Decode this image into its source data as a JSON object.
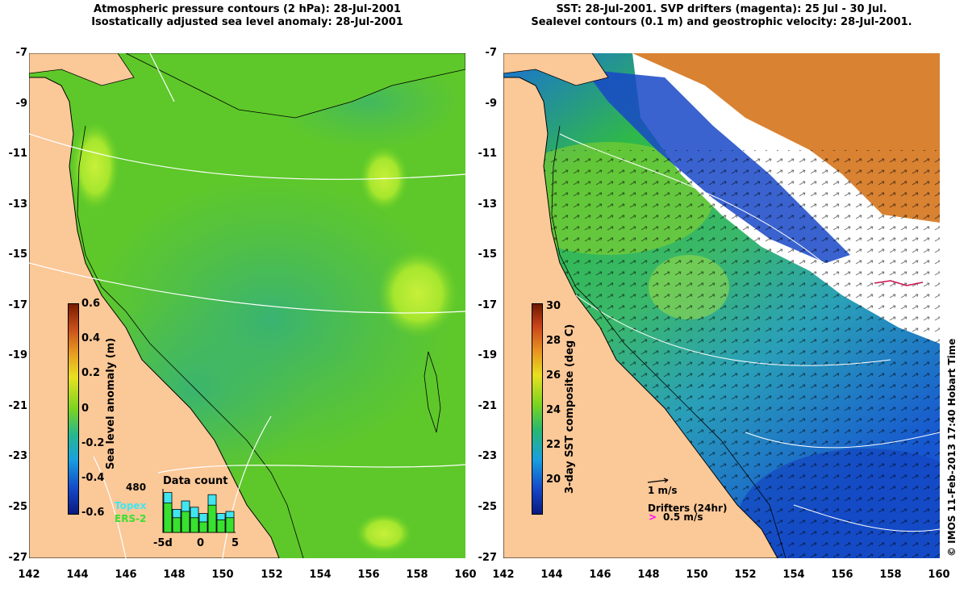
{
  "left_panel": {
    "title_line1": "Atmospheric pressure contours (2 hPa): 28-Jul-2001",
    "title_line2": "Isostatically adjusted sea level anomaly: 28-Jul-2001",
    "colorbar_title": "Sea level anomaly (m)",
    "colorbar_ticks": [
      "0.6",
      "0.4",
      "0.2",
      "0",
      "-0.2",
      "-0.4",
      "-0.6"
    ],
    "inset_title": "Data count",
    "inset_max": "480",
    "inset_xticks": [
      "-5d",
      "0",
      "5"
    ],
    "legend_topex": "Topex",
    "legend_ers2": "ERS-2",
    "inset_counts_topex": [
      0.95,
      0.55,
      0.75,
      0.6,
      0.45,
      0.9,
      0.45,
      0.5
    ],
    "inset_counts_ers2": [
      0.7,
      0.35,
      0.5,
      0.35,
      0.25,
      0.65,
      0.3,
      0.35
    ]
  },
  "right_panel": {
    "title_line1": "SST: 28-Jul-2001. SVP drifters (magenta): 25 Jul - 30 Jul.",
    "title_line2": "Sealevel contours (0.1 m) and geostrophic velocity: 28-Jul-2001.",
    "colorbar_title": "3-day SST composite (deg C)",
    "colorbar_ticks": [
      "30",
      "28",
      "26",
      "24",
      "22",
      "20"
    ],
    "velocity_scale": "1 m/s",
    "drifters_label": "Drifters (24hr)",
    "drifter_scale": "0.5 m/s"
  },
  "axes": {
    "y_ticks": [
      "-7",
      "-9",
      "-11",
      "-13",
      "-15",
      "-17",
      "-19",
      "-21",
      "-23",
      "-25",
      "-27"
    ],
    "x_ticks": [
      "142",
      "144",
      "146",
      "148",
      "150",
      "152",
      "154",
      "156",
      "158",
      "160"
    ],
    "lat_range": [
      -27,
      -7
    ],
    "lon_range": [
      142,
      160
    ]
  },
  "credit": "© IMOS 11-Feb-2013 17:40 Hobart Time",
  "colors": {
    "land": "#fbc898",
    "sea_green": "#52c81e",
    "sea_teal": "#3fb56c",
    "sst_blue": "#1a5fd6",
    "sst_orange": "#d67c1c",
    "drifter": "#ff00ff"
  }
}
